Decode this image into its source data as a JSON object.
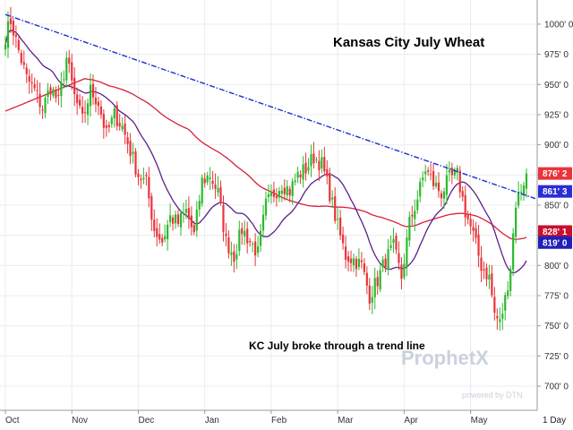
{
  "chart_data": {
    "type": "candlestick",
    "title": "Kansas City July Wheat",
    "annotation": "KC July broke through a trend line",
    "period": "1 Day",
    "watermark": {
      "brand": "ProphetX",
      "sub": "powered by DTN"
    },
    "x_labels": [
      "Oct",
      "Nov",
      "Dec",
      "Jan",
      "Feb",
      "Mar",
      "Apr",
      "May"
    ],
    "ylim": [
      680,
      1020
    ],
    "y_ticks": [
      {
        "value": 700,
        "label": "700' 0"
      },
      {
        "value": 725,
        "label": "725' 0"
      },
      {
        "value": 750,
        "label": "750' 0"
      },
      {
        "value": 775,
        "label": "775' 0"
      },
      {
        "value": 800,
        "label": "800' 0"
      },
      {
        "value": 825,
        "label": "825' 0"
      },
      {
        "value": 850,
        "label": "850' 0"
      },
      {
        "value": 875,
        "label": "875' 0"
      },
      {
        "value": 900,
        "label": "900' 0"
      },
      {
        "value": 925,
        "label": "925' 0"
      },
      {
        "value": 950,
        "label": "950' 0"
      },
      {
        "value": 975,
        "label": "975' 0"
      },
      {
        "value": 1000,
        "label": "1000' 0"
      }
    ],
    "price_tags": [
      {
        "value": 876.25,
        "label": "876' 2",
        "color": "#e8343a",
        "text_color": "#ffffff"
      },
      {
        "value": 861.375,
        "label": "861' 3",
        "color": "#2a2dd6",
        "text_color": "#ffffff"
      },
      {
        "value": 828.125,
        "label": "828' 1",
        "color": "#c8102e",
        "text_color": "#ffffff"
      },
      {
        "value": 819.0,
        "label": "819' 0",
        "color": "#1f20b8",
        "text_color": "#ffffff"
      }
    ],
    "trend_line": {
      "start": [
        0,
        1008
      ],
      "end": [
        196,
        858
      ],
      "color": "#1a2fd0"
    },
    "colors": {
      "up": "#2db82d",
      "down": "#e8343a",
      "ma_short": "#5b1f8a",
      "ma_long": "#d81f3c"
    },
    "anchors": [
      [
        0,
        990
      ],
      [
        2,
        1003
      ],
      [
        5,
        978
      ],
      [
        8,
        955
      ],
      [
        11,
        945
      ],
      [
        14,
        930
      ],
      [
        17,
        948
      ],
      [
        20,
        935
      ],
      [
        23,
        972
      ],
      [
        26,
        940
      ],
      [
        29,
        920
      ],
      [
        32,
        945
      ],
      [
        35,
        935
      ],
      [
        38,
        908
      ],
      [
        41,
        925
      ],
      [
        44,
        915
      ],
      [
        47,
        895
      ],
      [
        50,
        875
      ],
      [
        53,
        868
      ],
      [
        56,
        830
      ],
      [
        59,
        820
      ],
      [
        62,
        840
      ],
      [
        65,
        835
      ],
      [
        68,
        845
      ],
      [
        71,
        825
      ],
      [
        74,
        870
      ],
      [
        77,
        875
      ],
      [
        80,
        860
      ],
      [
        83,
        820
      ],
      [
        86,
        808
      ],
      [
        89,
        830
      ],
      [
        92,
        820
      ],
      [
        95,
        810
      ],
      [
        98,
        850
      ],
      [
        101,
        860
      ],
      [
        104,
        868
      ],
      [
        107,
        862
      ],
      [
        110,
        875
      ],
      [
        113,
        880
      ],
      [
        116,
        890
      ],
      [
        119,
        884
      ],
      [
        122,
        860
      ],
      [
        125,
        832
      ],
      [
        128,
        808
      ],
      [
        131,
        805
      ],
      [
        134,
        800
      ],
      [
        137,
        775
      ],
      [
        140,
        788
      ],
      [
        143,
        805
      ],
      [
        146,
        815
      ],
      [
        149,
        790
      ],
      [
        152,
        835
      ],
      [
        155,
        856
      ],
      [
        158,
        880
      ],
      [
        161,
        868
      ],
      [
        164,
        860
      ],
      [
        167,
        872
      ],
      [
        170,
        875
      ],
      [
        173,
        845
      ],
      [
        176,
        825
      ],
      [
        179,
        800
      ],
      [
        182,
        790
      ],
      [
        184,
        760
      ],
      [
        186,
        752
      ],
      [
        188,
        772
      ],
      [
        190,
        800
      ],
      [
        192,
        852
      ],
      [
        194,
        864
      ],
      [
        196,
        876.25
      ]
    ]
  }
}
